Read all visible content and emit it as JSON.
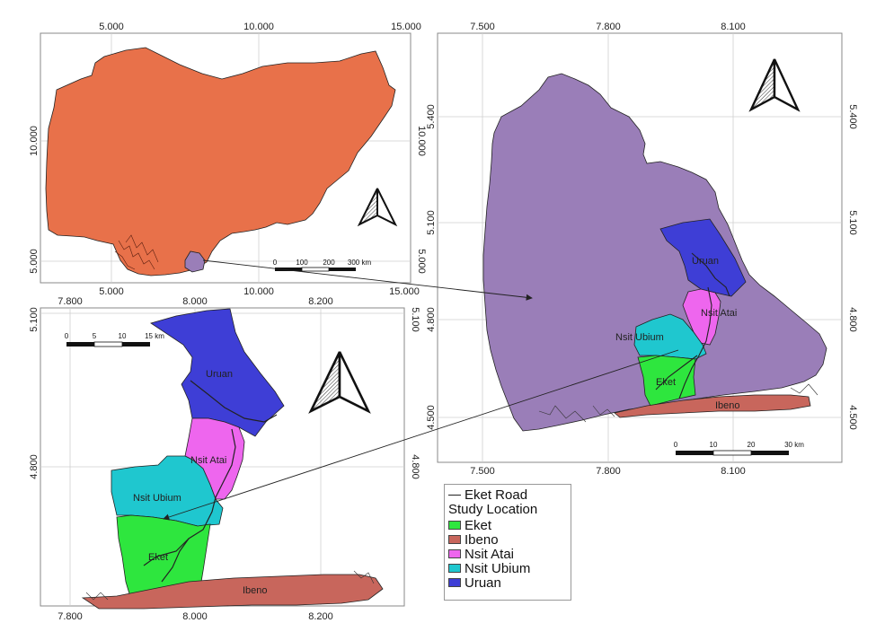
{
  "colors": {
    "nigeria": "#e8714a",
    "akwa_ibom": "#9a7eb8",
    "eket": "#2ee63e",
    "ibeno": "#c8665c",
    "nsit_atai": "#ee66ee",
    "nsit_ubium": "#1fc7cf",
    "uruan": "#3e3ed6",
    "road": "#222222"
  },
  "inset_nigeria": {
    "x_ticks": [
      "5.000",
      "10.000",
      "15.000"
    ],
    "y_ticks": [
      "10.000",
      "5.000"
    ],
    "scale_bar": {
      "labels": [
        "0",
        "100",
        "200",
        "300 km"
      ]
    },
    "north_arrow": "north-arrow-icon"
  },
  "inset_akwa_ibom": {
    "x_ticks": [
      "7.500",
      "7.800",
      "8.100"
    ],
    "y_ticks": [
      "5.400",
      "5.100",
      "4.800",
      "4.500"
    ],
    "labels": {
      "uruan": "Uruan",
      "nsit_atai": "Nsit Atai",
      "nsit_ubium": "Nsit Ubium",
      "eket": "Eket",
      "ibeno": "Ibeno"
    },
    "scale_bar": {
      "labels": [
        "0",
        "10",
        "20",
        "30 km"
      ]
    },
    "north_arrow": "north-arrow-icon"
  },
  "inset_study_area": {
    "x_ticks": [
      "7.800",
      "8.000",
      "8.200"
    ],
    "y_ticks": [
      "5.100",
      "4.800"
    ],
    "labels": {
      "uruan": "Uruan",
      "nsit_atai": "Nsit Atai",
      "nsit_ubium": "Nsit Ubium",
      "eket": "Eket",
      "ibeno": "Ibeno"
    },
    "scale_bar": {
      "labels": [
        "0",
        "5",
        "10",
        "15 km"
      ]
    },
    "north_arrow": "north-arrow-icon"
  },
  "legend": {
    "road_label": "Eket Road",
    "title": "Study Location",
    "items": [
      {
        "label": "Eket",
        "color": "#2ee63e"
      },
      {
        "label": "Ibeno",
        "color": "#c8665c"
      },
      {
        "label": "Nsit Atai",
        "color": "#ee66ee"
      },
      {
        "label": "Nsit Ubium",
        "color": "#1fc7cf"
      },
      {
        "label": "Uruan",
        "color": "#3e3ed6"
      }
    ]
  }
}
